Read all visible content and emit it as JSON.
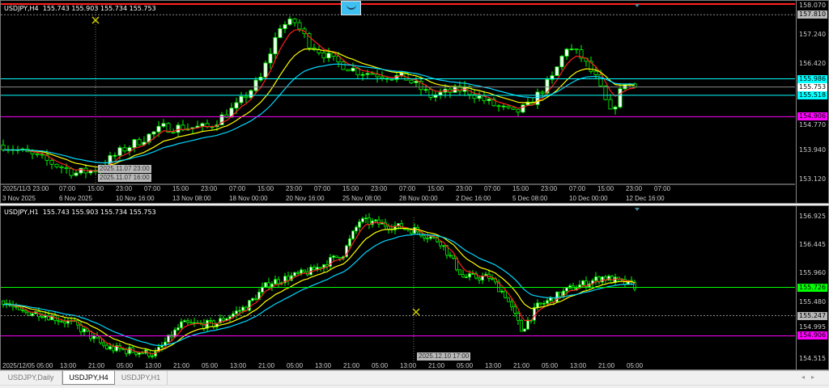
{
  "window": {
    "tabs": [
      {
        "label": "USDJPY,Daily",
        "active": false
      },
      {
        "label": "USDJPY,H4",
        "active": true
      },
      {
        "label": "USDJPY,H1",
        "active": false
      }
    ],
    "scroll_icons": [
      "scroll-left-icon",
      "scroll-right-icon"
    ]
  },
  "colors": {
    "background": "#000000",
    "candle": "#00ff00",
    "ma_fast": "#ff2020",
    "ma_mid": "#ffff00",
    "ma_slow": "#00d8ff",
    "level_cyan": "#00ffff",
    "level_magenta": "#ff00ff",
    "level_green": "#00ff00",
    "one_click_icon": "#3fc0f0"
  },
  "chart_h4": {
    "header": "USDJPY,H4  155.743 155.903 155.734 155.753",
    "price_ticks": [
      "158.070",
      "157.240",
      "156.420",
      "153.940",
      "153.120"
    ],
    "price_min": 153.12,
    "price_max": 158.07,
    "tags": [
      {
        "value": "157.810",
        "price": 157.81,
        "kind": "gray"
      },
      {
        "value": "155.986",
        "price": 155.986,
        "kind": "cyan"
      },
      {
        "value": "155.753",
        "price": 155.753,
        "kind": "white"
      },
      {
        "value": "155.518",
        "price": 155.518,
        "kind": "cyan"
      },
      {
        "value": "154.906",
        "price": 154.906,
        "kind": "magenta"
      }
    ],
    "hidden_tick": "154.770",
    "time_row1": [
      "2025/11/3 23:00",
      "07:00",
      "15:00",
      "23:00",
      "07:00",
      "15:00",
      "23:00",
      "07:00",
      "15:00",
      "23:00",
      "07:00",
      "15:00",
      "23:00",
      "07:00",
      "15:00",
      "23:00",
      "07:00",
      "15:00",
      "23:00",
      "07:00",
      "15:00",
      "23:00",
      "07:00"
    ],
    "time_row2": [
      "3 Nov 2025",
      "6 Nov 2025",
      "10 Nov 16:00",
      "13 Nov 08:00",
      "18 Nov 00:00",
      "20 Nov 16:00",
      "25 Nov 08:00",
      "28 Nov 00:00",
      "2 Dec 16:00",
      "5 Dec 08:00",
      "10 Dec 00:00",
      "12 Dec 16:00"
    ],
    "crosshair_tips": [
      "2025.11.07 23:00",
      "2025.11.07 16:00"
    ],
    "price_path": [
      [
        0,
        154.1
      ],
      [
        8,
        153.7
      ],
      [
        15,
        153.3
      ],
      [
        19,
        153.4
      ],
      [
        25,
        154.0
      ],
      [
        33,
        154.6
      ],
      [
        42,
        154.6
      ],
      [
        48,
        155.2
      ],
      [
        53,
        156.0
      ],
      [
        57,
        157.5
      ],
      [
        60,
        157.6
      ],
      [
        63,
        157.0
      ],
      [
        68,
        156.5
      ],
      [
        73,
        156.2
      ],
      [
        78,
        156.1
      ],
      [
        83,
        156.0
      ],
      [
        88,
        155.5
      ],
      [
        95,
        155.7
      ],
      [
        100,
        155.3
      ],
      [
        105,
        155.0
      ],
      [
        108,
        155.2
      ],
      [
        113,
        156.0
      ],
      [
        116,
        156.9
      ],
      [
        119,
        156.6
      ],
      [
        122,
        156.0
      ],
      [
        125,
        155.0
      ],
      [
        128,
        155.9
      ],
      [
        130,
        155.75
      ]
    ]
  },
  "chart_h1": {
    "header": "USDJPY,H1  155.743 155.903 155.734 155.753",
    "price_ticks": [
      "156.925",
      "156.445",
      "155.960",
      "155.480",
      "154.995",
      "154.515"
    ],
    "price_min": 154.515,
    "price_max": 156.925,
    "tags": [
      {
        "value": "155.726",
        "price": 155.726,
        "kind": "green"
      },
      {
        "value": "155.247",
        "price": 155.247,
        "kind": "gray"
      },
      {
        "value": "154.906",
        "price": 154.906,
        "kind": "magenta"
      }
    ],
    "time_row": [
      "2025/12/05 05:00",
      "13:00",
      "21:00",
      "05:00",
      "13:00",
      "21:00",
      "05:00",
      "13:00",
      "21:00",
      "05:00",
      "13:00",
      "21:00",
      "05:00",
      "13:00",
      "21:00",
      "05:00",
      "13:00",
      "21:00",
      "05:00",
      "13:00",
      "21:00",
      "05:00"
    ],
    "crosshair_tip": "2025.12.10 17:00",
    "price_path": [
      [
        0,
        155.5
      ],
      [
        5,
        155.3
      ],
      [
        11,
        155.3
      ],
      [
        22,
        155.1
      ],
      [
        27,
        154.9
      ],
      [
        32,
        154.7
      ],
      [
        47,
        154.6
      ],
      [
        55,
        155.1
      ],
      [
        65,
        155.1
      ],
      [
        75,
        155.4
      ],
      [
        82,
        155.8
      ],
      [
        95,
        156.0
      ],
      [
        105,
        156.3
      ],
      [
        110,
        156.85
      ],
      [
        117,
        156.8
      ],
      [
        127,
        156.7
      ],
      [
        135,
        156.5
      ],
      [
        142,
        155.9
      ],
      [
        150,
        155.9
      ],
      [
        155,
        155.6
      ],
      [
        160,
        155.0
      ],
      [
        165,
        155.4
      ],
      [
        175,
        155.7
      ],
      [
        185,
        155.9
      ],
      [
        195,
        155.75
      ]
    ]
  }
}
